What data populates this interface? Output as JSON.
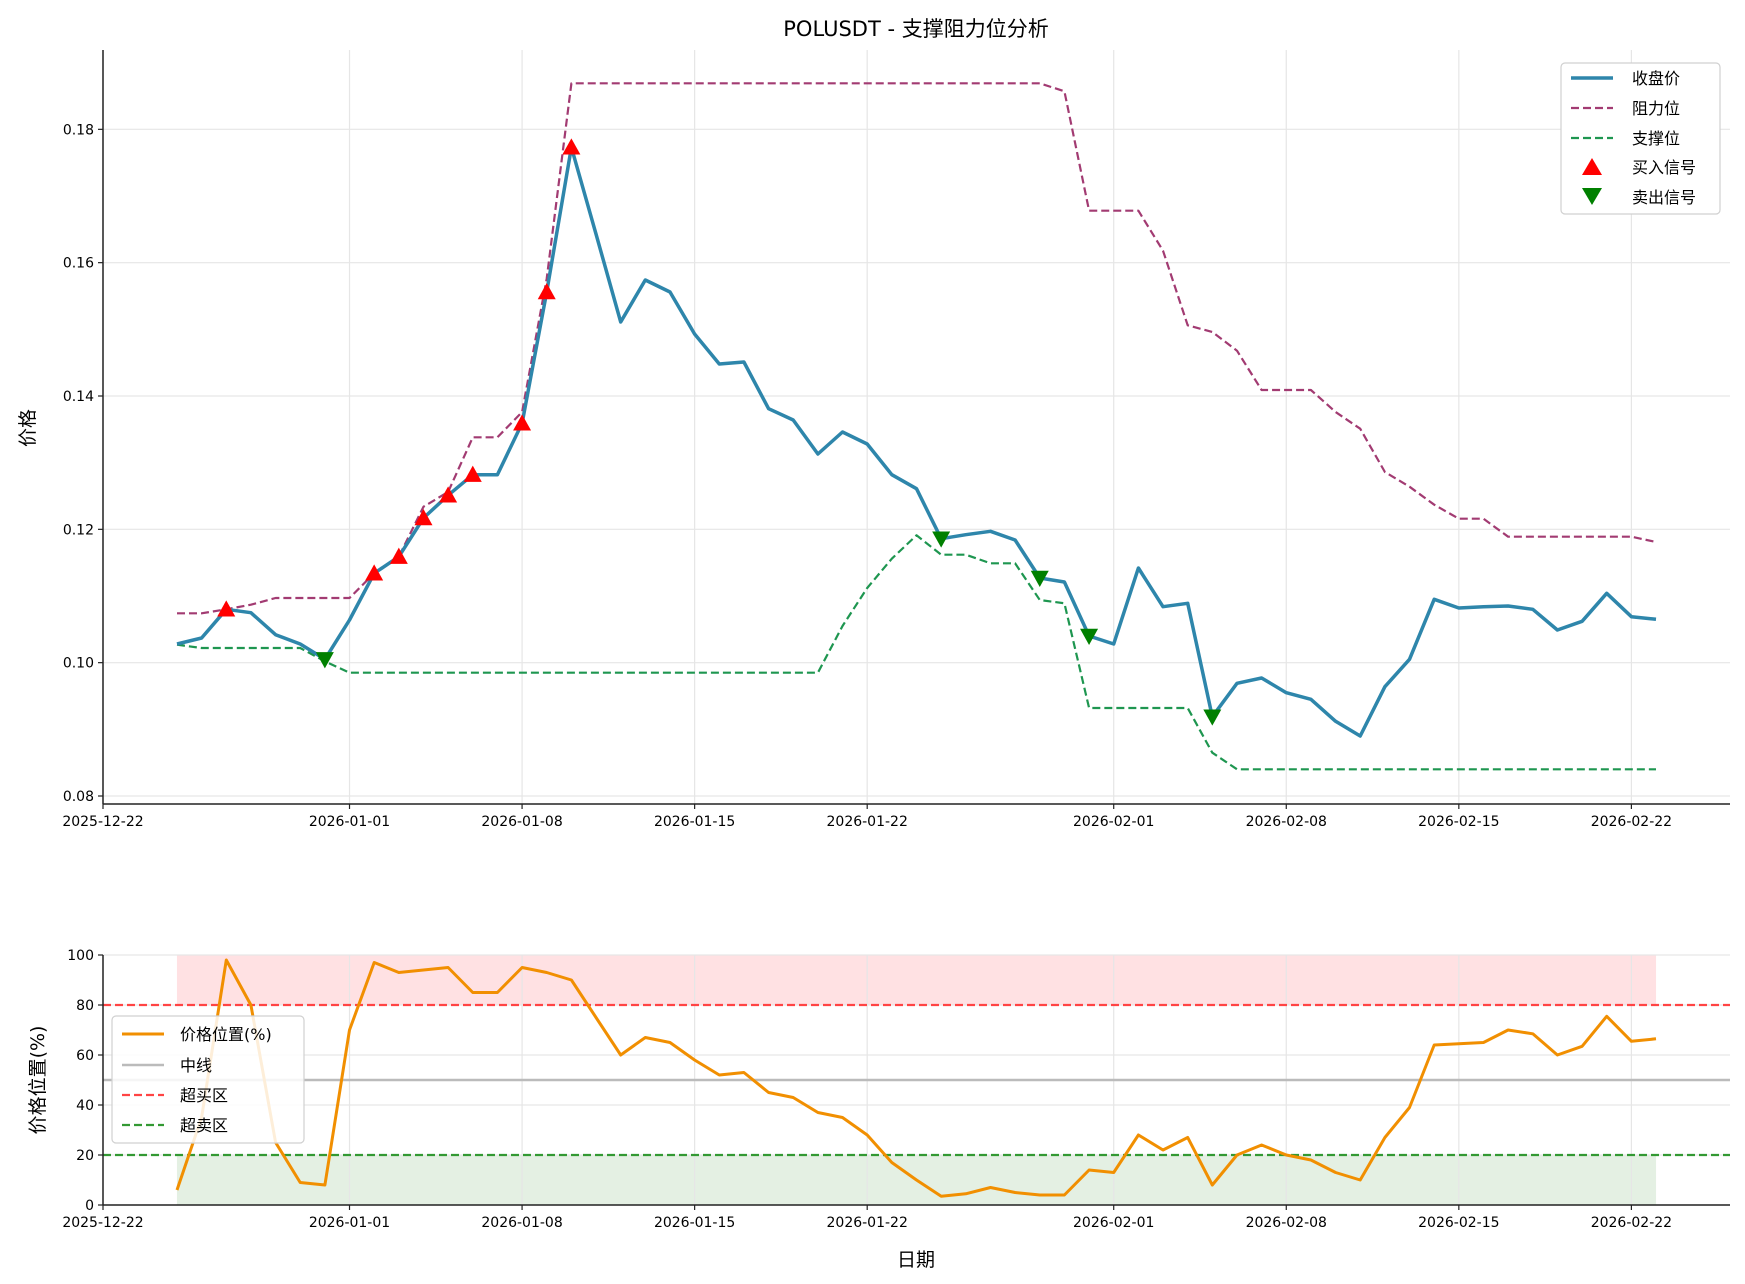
{
  "chart_data": [
    {
      "type": "line",
      "title": "POLUSDT - 支撑阻力位分析",
      "xlabel": "",
      "ylabel": "价格",
      "xlim": [
        "2025-12-22",
        "2026-02-26"
      ],
      "ylim": [
        0.0788,
        0.1919
      ],
      "grid": true,
      "legend_placement": "top-right",
      "x_ticks": [
        "2025-12-22",
        "2026-01-01",
        "2026-01-08",
        "2026-01-15",
        "2026-01-22",
        "2026-02-01",
        "2026-02-08",
        "2026-02-15",
        "2026-02-22"
      ],
      "y_ticks": [
        0.08,
        0.1,
        0.12,
        0.14,
        0.16,
        0.18
      ],
      "y_tick_labels": [
        "0.08",
        "0.10",
        "0.12",
        "0.14",
        "0.16",
        "0.18"
      ],
      "x_start": "2025-12-25",
      "series": [
        {
          "name": "收盘价",
          "style": "solid",
          "color": "#2e86ab",
          "values": [
            0.1028,
            0.1037,
            0.108,
            0.1075,
            0.1042,
            0.1028,
            0.1005,
            0.1064,
            0.1134,
            0.1159,
            0.1217,
            0.1251,
            0.1282,
            0.1282,
            0.1359,
            0.1556,
            0.1773,
            0.1643,
            0.1511,
            0.1574,
            0.1556,
            0.1493,
            0.1448,
            0.1451,
            0.1381,
            0.1364,
            0.1313,
            0.1346,
            0.1328,
            0.1282,
            0.1261,
            0.1186,
            0.1192,
            0.1197,
            0.1184,
            0.1127,
            0.1121,
            0.104,
            0.1028,
            0.1142,
            0.1084,
            0.1089,
            0.0919,
            0.0969,
            0.0977,
            0.0955,
            0.0945,
            0.0912,
            0.089,
            0.0964,
            0.1005,
            0.1095,
            0.1082,
            0.1084,
            0.1085,
            0.108,
            0.1049,
            0.1062,
            0.1104,
            0.1069,
            0.1065
          ]
        },
        {
          "name": "阻力位",
          "style": "dashed",
          "color": "#a23b72",
          "values": [
            0.1074,
            0.1074,
            0.108,
            0.1087,
            0.1097,
            0.1097,
            0.1097,
            0.1097,
            0.1134,
            0.1159,
            0.1234,
            0.1256,
            0.1338,
            0.1338,
            0.1376,
            0.1576,
            0.1869,
            0.1869,
            0.1869,
            0.1869,
            0.1869,
            0.1869,
            0.1869,
            0.1869,
            0.1869,
            0.1869,
            0.1869,
            0.1869,
            0.1869,
            0.1869,
            0.1869,
            0.1869,
            0.1869,
            0.1869,
            0.1869,
            0.1869,
            0.1857,
            0.1678,
            0.1678,
            0.1678,
            0.1618,
            0.1506,
            0.1496,
            0.1468,
            0.1409,
            0.1409,
            0.1409,
            0.1376,
            0.1351,
            0.1286,
            0.1264,
            0.1237,
            0.1216,
            0.1216,
            0.1189,
            0.1189,
            0.1189,
            0.1189,
            0.1189,
            0.1189,
            0.1181
          ]
        },
        {
          "name": "支撑位",
          "style": "dashed",
          "color": "#1e9650",
          "values": [
            0.1027,
            0.1022,
            0.1022,
            0.1022,
            0.1022,
            0.1022,
            0.1002,
            0.0985,
            0.0985,
            0.0985,
            0.0985,
            0.0985,
            0.0985,
            0.0985,
            0.0985,
            0.0985,
            0.0985,
            0.0985,
            0.0985,
            0.0985,
            0.0985,
            0.0985,
            0.0985,
            0.0985,
            0.0985,
            0.0985,
            0.0985,
            0.1055,
            0.1112,
            0.1156,
            0.1191,
            0.1162,
            0.1162,
            0.1149,
            0.1149,
            0.1094,
            0.1089,
            0.0932,
            0.0932,
            0.0932,
            0.0932,
            0.0932,
            0.0865,
            0.084,
            0.084,
            0.084,
            0.084,
            0.084,
            0.084,
            0.084,
            0.084,
            0.084,
            0.084,
            0.084,
            0.084,
            0.084,
            0.084,
            0.084,
            0.084,
            0.084,
            0.084
          ]
        }
      ],
      "markers": [
        {
          "name": "买入信号",
          "shape": "triangle-up",
          "color": "#ff0000",
          "indices": [
            2,
            8,
            9,
            10,
            11,
            12,
            14,
            15,
            16
          ]
        },
        {
          "name": "卖出信号",
          "shape": "triangle-down",
          "color": "#008000",
          "indices": [
            6,
            31,
            35,
            37,
            42
          ]
        }
      ]
    },
    {
      "type": "line",
      "title": "",
      "xlabel": "日期",
      "ylabel": "价格位置(%)",
      "xlim": [
        "2025-12-22",
        "2026-02-26"
      ],
      "ylim": [
        0,
        100
      ],
      "grid": true,
      "legend_placement": "center-left",
      "x_ticks": [
        "2025-12-22",
        "2026-01-01",
        "2026-01-08",
        "2026-01-15",
        "2026-01-22",
        "2026-02-01",
        "2026-02-08",
        "2026-02-15",
        "2026-02-22"
      ],
      "y_ticks": [
        0,
        20,
        40,
        60,
        80,
        100
      ],
      "y_tick_labels": [
        "0",
        "20",
        "40",
        "60",
        "80",
        "100"
      ],
      "x_start": "2025-12-25",
      "series": [
        {
          "name": "价格位置(%)",
          "style": "solid",
          "color": "#f18f01",
          "values": [
            6,
            35,
            98,
            80,
            25,
            9,
            8,
            70,
            97,
            93,
            94,
            95,
            85,
            85,
            95,
            93,
            90,
            75,
            60,
            67,
            65,
            58,
            52,
            53,
            45,
            43,
            37,
            35,
            28,
            17,
            10,
            3.5,
            4.5,
            7,
            5,
            4,
            4,
            14,
            13,
            28,
            22,
            27,
            8,
            20,
            24,
            20,
            18,
            13,
            10,
            27,
            39,
            64,
            64.5,
            65,
            70,
            68.5,
            60,
            63.5,
            75.5,
            65.5,
            66.5
          ]
        }
      ],
      "reference_lines": [
        {
          "name": "中线",
          "value": 50,
          "style": "solid",
          "color": "#bbbbbb"
        },
        {
          "name": "超买区",
          "value": 80,
          "style": "dashed",
          "color": "#ff4444"
        },
        {
          "name": "超卖区",
          "value": 20,
          "style": "dashed",
          "color": "#339933"
        }
      ],
      "zones": [
        {
          "from": 80,
          "to": 100,
          "color": "#ffe1e3"
        },
        {
          "from": 0,
          "to": 20,
          "color": "#e4f0e3"
        }
      ]
    }
  ]
}
